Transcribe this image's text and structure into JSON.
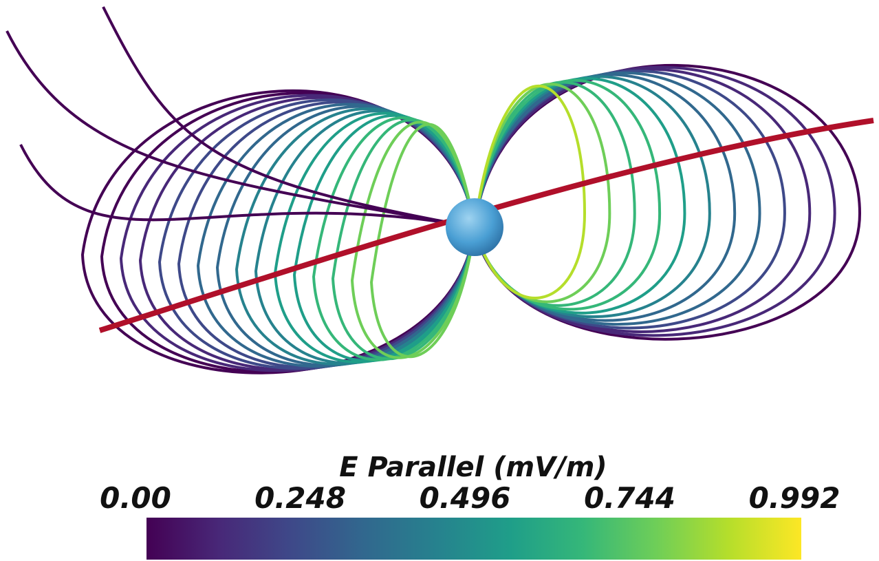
{
  "chart_data": {
    "type": "colorbar",
    "title": "E Parallel (mV/m)",
    "colormap": "viridis",
    "clim": [
      0,
      0.992
    ],
    "ticks": [
      {
        "value": 0,
        "label": "0.00"
      },
      0.248,
      0.496,
      0.744,
      0.992
    ]
  }
}
